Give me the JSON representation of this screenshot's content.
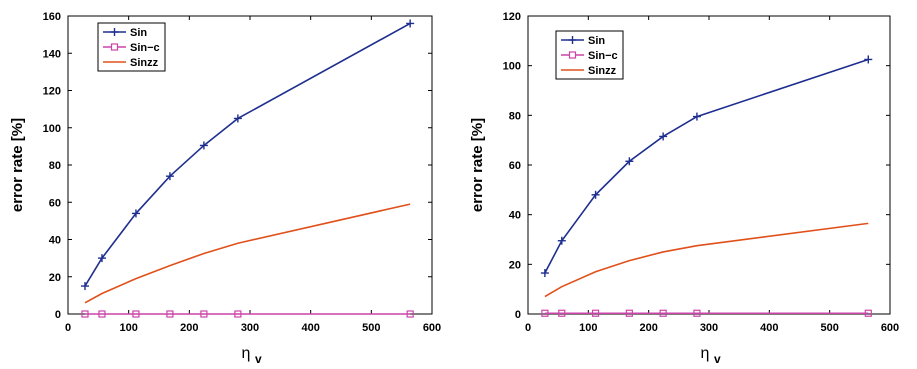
{
  "chart_data": [
    {
      "type": "line",
      "xlabel": "η",
      "xlabel_sub": "v",
      "ylabel": "error rate [%]",
      "xlim": [
        0,
        600
      ],
      "ylim": [
        0,
        160
      ],
      "xticks": [
        0,
        100,
        200,
        300,
        400,
        500,
        600
      ],
      "yticks": [
        0,
        20,
        40,
        60,
        80,
        100,
        120,
        140,
        160
      ],
      "grid": false,
      "legend_position": "top-left",
      "series": [
        {
          "name": "Sin",
          "color": "#1f2f8f",
          "marker": "plus",
          "x": [
            28,
            56,
            112,
            168,
            224,
            280,
            564
          ],
          "y": [
            15,
            30,
            54,
            74,
            90.5,
            105,
            156
          ]
        },
        {
          "name": "Sin−c",
          "color": "#cc44aa",
          "marker": "square",
          "x": [
            28,
            56,
            112,
            168,
            224,
            280,
            564
          ],
          "y": [
            0,
            0,
            0,
            0,
            0,
            0,
            0
          ]
        },
        {
          "name": "Sinzz",
          "color": "#e0501a",
          "marker": "none",
          "x": [
            28,
            56,
            112,
            168,
            224,
            280,
            564
          ],
          "y": [
            6,
            11,
            19,
            26,
            32.5,
            38,
            59
          ]
        }
      ]
    },
    {
      "type": "line",
      "xlabel": "η",
      "xlabel_sub": "v",
      "ylabel": "error rate [%]",
      "xlim": [
        0,
        600
      ],
      "ylim": [
        0,
        120
      ],
      "xticks": [
        0,
        100,
        200,
        300,
        400,
        500,
        600
      ],
      "yticks": [
        0,
        20,
        40,
        60,
        80,
        100,
        120
      ],
      "grid": false,
      "legend_position": "top-left",
      "series": [
        {
          "name": "Sin",
          "color": "#1f2f8f",
          "marker": "plus",
          "x": [
            28,
            56,
            112,
            168,
            224,
            280,
            564
          ],
          "y": [
            16.5,
            29.5,
            48,
            61.5,
            71.5,
            79.5,
            102.5
          ]
        },
        {
          "name": "Sin−c",
          "color": "#cc44aa",
          "marker": "square",
          "x": [
            28,
            56,
            112,
            168,
            224,
            280,
            564
          ],
          "y": [
            0.3,
            0.3,
            0.3,
            0.3,
            0.3,
            0.3,
            0.3
          ]
        },
        {
          "name": "Sinzz",
          "color": "#e0501a",
          "marker": "none",
          "x": [
            28,
            56,
            112,
            168,
            224,
            280,
            564
          ],
          "y": [
            7,
            11,
            17,
            21.5,
            25,
            27.5,
            36.5
          ]
        }
      ]
    }
  ]
}
